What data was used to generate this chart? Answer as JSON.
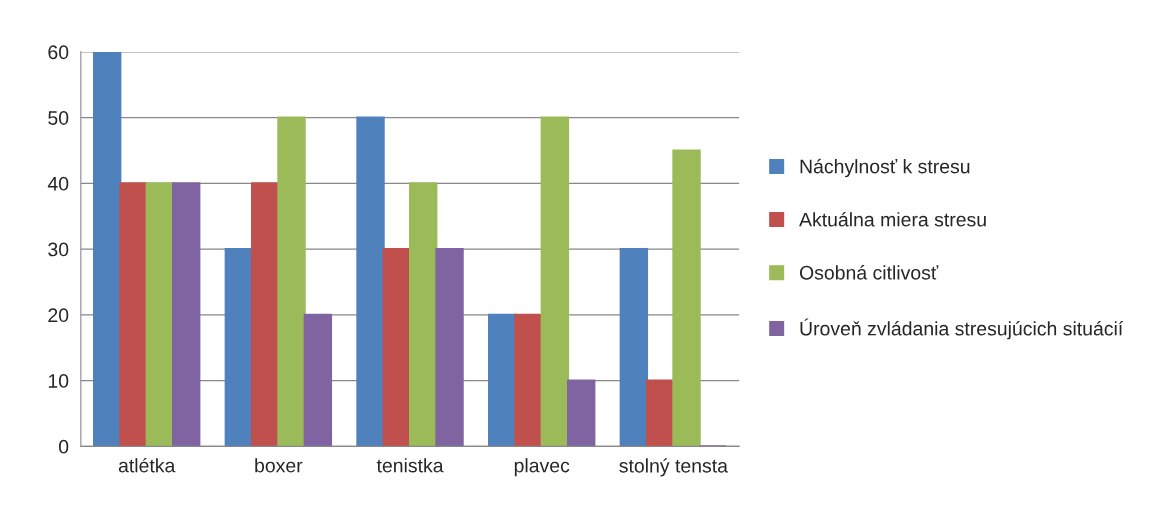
{
  "chart_data": {
    "type": "bar",
    "categories": [
      "atlétka",
      "boxer",
      "tenistka",
      "plavec",
      "stolný tensta"
    ],
    "series": [
      {
        "name": "Náchylnosť k stresu",
        "color": "#4f81bd",
        "values": [
          60,
          30,
          50,
          20,
          30
        ]
      },
      {
        "name": "Aktuálna miera stresu",
        "color": "#c0504d",
        "values": [
          40,
          40,
          30,
          20,
          10
        ]
      },
      {
        "name": "Osobná citlivosť",
        "color": "#9bbb59",
        "values": [
          40,
          50,
          40,
          50,
          45
        ]
      },
      {
        "name": "Úroveň zvládania stresujúcich situácií",
        "color": "#8064a2",
        "values": [
          40,
          20,
          30,
          10,
          0
        ]
      }
    ],
    "ylim": [
      0,
      60
    ],
    "yticks": [
      0,
      10,
      20,
      30,
      40,
      50,
      60
    ],
    "grid": "y",
    "legend": "right"
  }
}
